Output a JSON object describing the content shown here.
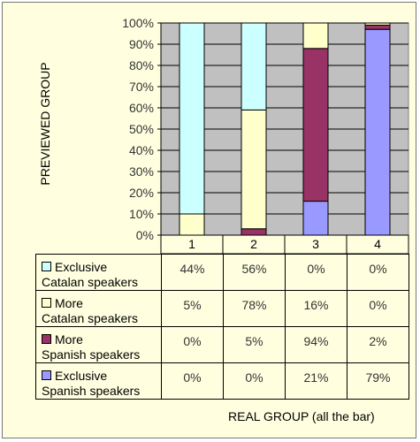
{
  "chart_data": {
    "type": "bar",
    "stacked": true,
    "categories": [
      "1",
      "2",
      "3",
      "4"
    ],
    "ylabel": "PREVIEWED GROUP",
    "xlabel": "REAL GROUP (all the bar)",
    "ylim": [
      0,
      100
    ],
    "yticks": [
      "0%",
      "10%",
      "20%",
      "30%",
      "40%",
      "50%",
      "60%",
      "70%",
      "80%",
      "90%",
      "100%"
    ],
    "series": [
      {
        "name": "Exclusive Spanish speakers",
        "values": [
          0,
          0,
          16,
          97
        ],
        "color": "#9999ff"
      },
      {
        "name": "More Spanish speakers",
        "values": [
          0,
          3,
          72,
          2
        ],
        "color": "#993366"
      },
      {
        "name": "More Catalan speakers",
        "values": [
          10,
          56,
          12,
          1
        ],
        "color": "#ffffcc"
      },
      {
        "name": "Exclusive Catalan speakers",
        "values": [
          90,
          41,
          0,
          0
        ],
        "color": "#ccffff"
      }
    ],
    "plot_background": "#c0c0c0",
    "grid": true,
    "table": {
      "rows": [
        {
          "label_line1": "Exclusive",
          "label_line2": "Catalan speakers",
          "color": "#ccffff",
          "values": [
            "44%",
            "56%",
            "0%",
            "0%"
          ]
        },
        {
          "label_line1": "More",
          "label_line2": "Catalan speakers",
          "color": "#ffffcc",
          "values": [
            "5%",
            "78%",
            "16%",
            "0%"
          ]
        },
        {
          "label_line1": "More",
          "label_line2": "Spanish speakers",
          "color": "#993366",
          "values": [
            "0%",
            "5%",
            "94%",
            "2%"
          ]
        },
        {
          "label_line1": "Exclusive",
          "label_line2": "Spanish speakers",
          "color": "#9999ff",
          "values": [
            "0%",
            "0%",
            "21%",
            "79%"
          ]
        }
      ]
    }
  }
}
